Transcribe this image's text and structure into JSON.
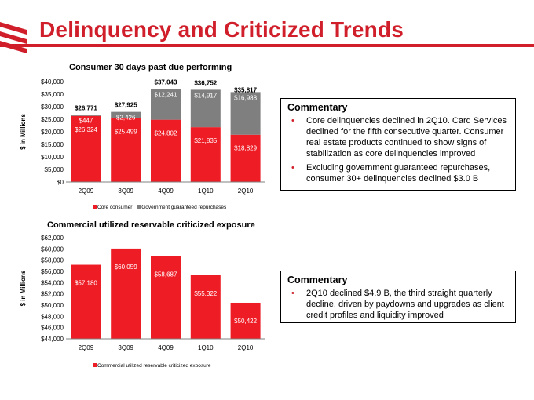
{
  "slide": {
    "title": "Delinquency and Criticized Trends"
  },
  "colors": {
    "accent": "#d01f2b",
    "bar_red": "#ee1c25",
    "bar_gray": "#7f7f7f"
  },
  "chart_data": [
    {
      "id": "consumer",
      "type": "bar",
      "stacked": true,
      "title": "Consumer 30 days past due performing",
      "ylabel": "$ in Millions",
      "xlabel": "",
      "ylim": [
        0,
        40000
      ],
      "ytick_step": 5000,
      "ytick_labels": [
        "$0",
        "$5,000",
        "$10,000",
        "$15,000",
        "$20,000",
        "$25,000",
        "$30,000",
        "$35,000",
        "$40,000"
      ],
      "categories": [
        "2Q09",
        "3Q09",
        "4Q09",
        "1Q10",
        "2Q10"
      ],
      "series": [
        {
          "name": "Core consumer",
          "color": "#ee1c25",
          "values": [
            26324,
            25499,
            24802,
            21835,
            18829
          ],
          "labels": [
            "$26,324",
            "$25,499",
            "$24,802",
            "$21,835",
            "$18,829"
          ]
        },
        {
          "name": "Government guaranteed repurchases",
          "color": "#7f7f7f",
          "values": [
            447,
            2426,
            12241,
            14917,
            16988
          ],
          "labels": [
            "$447",
            "$2,426",
            "$12,241",
            "$14,917",
            "$16,988"
          ]
        }
      ],
      "totals": [
        26771,
        27925,
        37043,
        36752,
        35817
      ],
      "total_labels": [
        "$26,771",
        "$27,925",
        "$37,043",
        "$36,752",
        "$35,817"
      ],
      "legend": "bottom"
    },
    {
      "id": "commercial",
      "type": "bar",
      "stacked": false,
      "title": "Commercial utilized reservable criticized exposure",
      "ylabel": "$ in Millions",
      "xlabel": "",
      "ylim": [
        44000,
        62000
      ],
      "ytick_step": 2000,
      "ytick_labels": [
        "$44,000",
        "$46,000",
        "$48,000",
        "$50,000",
        "$52,000",
        "$54,000",
        "$56,000",
        "$58,000",
        "$60,000",
        "$62,000"
      ],
      "categories": [
        "2Q09",
        "3Q09",
        "4Q09",
        "1Q10",
        "2Q10"
      ],
      "series": [
        {
          "name": "Commercial utilized reservable criticized exposure",
          "color": "#ee1c25",
          "values": [
            57180,
            60059,
            58687,
            55322,
            50422
          ],
          "labels": [
            "$57,180",
            "$60,059",
            "$58,687",
            "$55,322",
            "$50,422"
          ]
        }
      ],
      "legend": "bottom"
    }
  ],
  "commentary": [
    {
      "heading": "Commentary",
      "bullet_char": "•",
      "bullets": [
        "Core delinquencies declined in 2Q10. Card Services declined for the fifth consecutive quarter. Consumer real estate products continued to show signs of stabilization as core delinquencies improved",
        "Excluding government guaranteed repurchases, consumer 30+ delinquencies declined $3.0 B"
      ]
    },
    {
      "heading": "Commentary",
      "bullet_char": "•",
      "bullets": [
        "2Q10 declined $4.9 B, the third straight quarterly decline, driven by paydowns and upgrades as client credit profiles and liquidity improved"
      ]
    }
  ]
}
